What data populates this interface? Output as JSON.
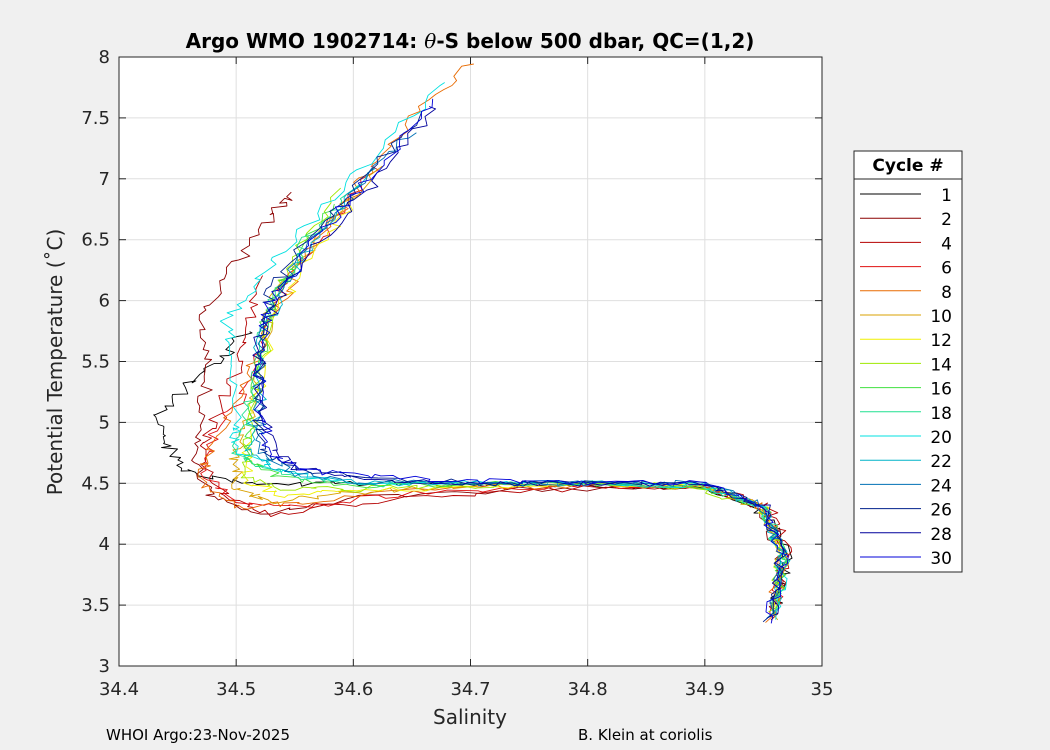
{
  "chart_data": {
    "type": "line",
    "title_prefix": "Argo WMO 1902714: ",
    "title_theta": "θ",
    "title_suffix": "-S below 500 dbar,  QC=(1,2)",
    "xlabel": "Salinity",
    "ylabel": "Potential Temperature (˚C)",
    "xlim": [
      34.4,
      35.0
    ],
    "ylim": [
      3.0,
      8.0
    ],
    "xticks": [
      "34.4",
      "34.5",
      "34.6",
      "34.7",
      "34.8",
      "34.9",
      "35"
    ],
    "yticks": [
      "3",
      "3.5",
      "4",
      "4.5",
      "5",
      "5.5",
      "6",
      "6.5",
      "7",
      "7.5",
      "8"
    ],
    "grid": true,
    "legend": {
      "title": "Cycle #",
      "placement": "right",
      "entries": [
        {
          "label": "1",
          "color": "#000000"
        },
        {
          "label": "2",
          "color": "#8c0000"
        },
        {
          "label": "4",
          "color": "#b40000"
        },
        {
          "label": "6",
          "color": "#e01010"
        },
        {
          "label": "8",
          "color": "#e86a00"
        },
        {
          "label": "10",
          "color": "#d8a000"
        },
        {
          "label": "12",
          "color": "#f0f000"
        },
        {
          "label": "14",
          "color": "#9ee800"
        },
        {
          "label": "16",
          "color": "#40e040"
        },
        {
          "label": "18",
          "color": "#20e090"
        },
        {
          "label": "20",
          "color": "#00e0e0"
        },
        {
          "label": "22",
          "color": "#00b4c8"
        },
        {
          "label": "24",
          "color": "#0070b4"
        },
        {
          "label": "26",
          "color": "#00208c"
        },
        {
          "label": "28",
          "color": "#00009c"
        },
        {
          "label": "30",
          "color": "#0000d8"
        }
      ]
    },
    "base_profile": [
      [
        34.955,
        3.32
      ],
      [
        34.958,
        3.45
      ],
      [
        34.962,
        3.6
      ],
      [
        34.965,
        3.75
      ],
      [
        34.967,
        3.9
      ],
      [
        34.966,
        4.0
      ],
      [
        34.963,
        4.1
      ],
      [
        34.955,
        4.2
      ],
      [
        34.94,
        4.3
      ],
      [
        34.92,
        4.4
      ],
      [
        34.9,
        4.48
      ],
      [
        34.85,
        4.5
      ],
      [
        34.8,
        4.5
      ],
      [
        34.75,
        4.5
      ],
      [
        34.7,
        4.5
      ],
      [
        34.65,
        4.52
      ],
      [
        34.6,
        4.55
      ],
      [
        34.56,
        4.6
      ],
      [
        34.53,
        4.68
      ],
      [
        34.52,
        4.8
      ],
      [
        34.52,
        5.0
      ],
      [
        34.52,
        5.3
      ],
      [
        34.52,
        5.6
      ],
      [
        34.52,
        5.9
      ],
      [
        34.535,
        6.15
      ],
      [
        34.555,
        6.4
      ],
      [
        34.58,
        6.7
      ],
      [
        34.61,
        7.0
      ],
      [
        34.64,
        7.3
      ],
      [
        34.67,
        7.6
      ]
    ],
    "series": [
      {
        "name": "1",
        "color": "#000000",
        "profile": [
          [
            34.96,
            3.5
          ],
          [
            34.97,
            3.9
          ],
          [
            34.95,
            4.25
          ],
          [
            34.9,
            4.47
          ],
          [
            34.8,
            4.48
          ],
          [
            34.7,
            4.5
          ],
          [
            34.6,
            4.5
          ],
          [
            34.5,
            4.5
          ],
          [
            34.46,
            4.6
          ],
          [
            34.44,
            4.8
          ],
          [
            34.43,
            5.05
          ],
          [
            34.46,
            5.3
          ],
          [
            34.49,
            5.55
          ],
          [
            34.51,
            5.75
          ]
        ]
      },
      {
        "name": "2",
        "color": "#8c0000",
        "profile": [
          [
            34.96,
            3.4
          ],
          [
            34.965,
            3.9
          ],
          [
            34.95,
            4.28
          ],
          [
            34.9,
            4.46
          ],
          [
            34.75,
            4.45
          ],
          [
            34.62,
            4.4
          ],
          [
            34.52,
            4.25
          ],
          [
            34.48,
            4.4
          ],
          [
            34.46,
            4.7
          ],
          [
            34.47,
            5.1
          ],
          [
            34.48,
            5.5
          ],
          [
            34.47,
            5.9
          ],
          [
            34.5,
            6.3
          ],
          [
            34.53,
            6.7
          ],
          [
            34.55,
            6.87
          ]
        ]
      },
      {
        "name": "4",
        "color": "#b40000",
        "profile": [
          [
            34.96,
            3.5
          ],
          [
            34.97,
            3.95
          ],
          [
            34.955,
            4.3
          ],
          [
            34.9,
            4.47
          ],
          [
            34.75,
            4.45
          ],
          [
            34.62,
            4.35
          ],
          [
            34.53,
            4.25
          ],
          [
            34.49,
            4.4
          ],
          [
            34.47,
            4.7
          ],
          [
            34.48,
            5.0
          ],
          [
            34.5,
            5.4
          ],
          [
            34.51,
            5.8
          ],
          [
            34.52,
            6.2
          ]
        ]
      },
      {
        "name": "6",
        "color": "#e01010",
        "profile": [
          [
            34.958,
            3.4
          ],
          [
            34.968,
            3.95
          ],
          [
            34.95,
            4.3
          ],
          [
            34.9,
            4.47
          ],
          [
            34.78,
            4.47
          ],
          [
            34.65,
            4.42
          ],
          [
            34.55,
            4.3
          ],
          [
            34.5,
            4.35
          ],
          [
            34.47,
            4.6
          ],
          [
            34.48,
            4.9
          ],
          [
            34.51,
            5.3
          ],
          [
            34.52,
            5.7
          ],
          [
            34.54,
            6.1
          ],
          [
            34.58,
            6.6
          ],
          [
            34.62,
            7.1
          ]
        ]
      },
      {
        "name": "8",
        "color": "#e86a00",
        "profile": [
          [
            34.955,
            3.35
          ],
          [
            34.966,
            3.9
          ],
          [
            34.95,
            4.3
          ],
          [
            34.9,
            4.47
          ],
          [
            34.78,
            4.48
          ],
          [
            34.66,
            4.45
          ],
          [
            34.56,
            4.35
          ],
          [
            34.5,
            4.3
          ],
          [
            34.47,
            4.5
          ],
          [
            34.48,
            4.8
          ],
          [
            34.5,
            5.2
          ],
          [
            34.52,
            5.6
          ],
          [
            34.54,
            6.0
          ],
          [
            34.57,
            6.5
          ],
          [
            34.61,
            7.0
          ],
          [
            34.65,
            7.5
          ],
          [
            34.7,
            7.95
          ]
        ]
      },
      {
        "name": "10",
        "color": "#d8a000",
        "profile": [
          [
            34.96,
            3.4
          ],
          [
            34.967,
            3.9
          ],
          [
            34.95,
            4.28
          ],
          [
            34.9,
            4.47
          ],
          [
            34.8,
            4.5
          ],
          [
            34.7,
            4.48
          ],
          [
            34.6,
            4.42
          ],
          [
            34.53,
            4.35
          ],
          [
            34.5,
            4.45
          ],
          [
            34.5,
            4.7
          ],
          [
            34.51,
            5.0
          ],
          [
            34.52,
            5.5
          ],
          [
            34.53,
            6.0
          ],
          [
            34.57,
            6.5
          ],
          [
            34.62,
            7.1
          ]
        ]
      },
      {
        "name": "12",
        "color": "#f0f000",
        "profile": [
          [
            34.96,
            3.5
          ],
          [
            34.966,
            3.9
          ],
          [
            34.95,
            4.3
          ],
          [
            34.9,
            4.48
          ],
          [
            34.8,
            4.5
          ],
          [
            34.7,
            4.47
          ],
          [
            34.6,
            4.43
          ],
          [
            34.54,
            4.4
          ],
          [
            34.51,
            4.5
          ],
          [
            34.51,
            4.8
          ],
          [
            34.52,
            5.3
          ],
          [
            34.53,
            5.8
          ],
          [
            34.56,
            6.3
          ],
          [
            34.6,
            6.8
          ]
        ]
      },
      {
        "name": "14",
        "color": "#9ee800",
        "profile": [
          [
            34.958,
            3.45
          ],
          [
            34.966,
            3.9
          ],
          [
            34.95,
            4.3
          ],
          [
            34.9,
            4.45
          ],
          [
            34.8,
            4.5
          ],
          [
            34.7,
            4.48
          ],
          [
            34.6,
            4.45
          ],
          [
            34.54,
            4.45
          ],
          [
            34.51,
            4.55
          ],
          [
            34.51,
            4.9
          ],
          [
            34.52,
            5.4
          ],
          [
            34.53,
            5.9
          ],
          [
            34.55,
            6.4
          ],
          [
            34.59,
            6.9
          ]
        ]
      },
      {
        "name": "16",
        "color": "#40e040",
        "profile": [
          [
            34.96,
            3.4
          ],
          [
            34.967,
            3.9
          ],
          [
            34.95,
            4.3
          ],
          [
            34.9,
            4.47
          ],
          [
            34.8,
            4.5
          ],
          [
            34.7,
            4.5
          ],
          [
            34.6,
            4.47
          ],
          [
            34.54,
            4.55
          ],
          [
            34.51,
            4.7
          ],
          [
            34.51,
            5.0
          ],
          [
            34.52,
            5.5
          ],
          [
            34.53,
            6.0
          ],
          [
            34.55,
            6.3
          ],
          [
            34.58,
            6.8
          ]
        ]
      },
      {
        "name": "18",
        "color": "#20e090",
        "profile": [
          [
            34.958,
            3.45
          ],
          [
            34.966,
            3.9
          ],
          [
            34.95,
            4.3
          ],
          [
            34.9,
            4.48
          ],
          [
            34.8,
            4.5
          ],
          [
            34.7,
            4.5
          ],
          [
            34.6,
            4.48
          ],
          [
            34.53,
            4.6
          ],
          [
            34.5,
            4.75
          ],
          [
            34.51,
            5.1
          ],
          [
            34.52,
            5.6
          ],
          [
            34.53,
            6.0
          ],
          [
            34.56,
            6.5
          ],
          [
            34.6,
            6.95
          ]
        ]
      },
      {
        "name": "20",
        "color": "#00e0e0",
        "profile": [
          [
            34.96,
            3.4
          ],
          [
            34.967,
            3.9
          ],
          [
            34.95,
            4.3
          ],
          [
            34.9,
            4.48
          ],
          [
            34.8,
            4.5
          ],
          [
            34.7,
            4.5
          ],
          [
            34.6,
            4.48
          ],
          [
            34.53,
            4.62
          ],
          [
            34.5,
            4.8
          ],
          [
            34.5,
            5.0
          ],
          [
            34.5,
            5.5
          ],
          [
            34.49,
            5.85
          ],
          [
            34.52,
            6.2
          ],
          [
            34.56,
            6.6
          ],
          [
            34.62,
            7.2
          ],
          [
            34.68,
            7.8
          ]
        ]
      },
      {
        "name": "22",
        "color": "#00b4c8",
        "profile": [
          [
            34.958,
            3.4
          ],
          [
            34.968,
            3.9
          ],
          [
            34.95,
            4.3
          ],
          [
            34.9,
            4.48
          ],
          [
            34.8,
            4.5
          ],
          [
            34.7,
            4.5
          ],
          [
            34.6,
            4.5
          ],
          [
            34.54,
            4.6
          ],
          [
            34.51,
            4.8
          ],
          [
            34.52,
            5.2
          ],
          [
            34.52,
            5.7
          ],
          [
            34.54,
            6.1
          ],
          [
            34.57,
            6.55
          ],
          [
            34.62,
            7.1
          ]
        ]
      },
      {
        "name": "24",
        "color": "#0070b4",
        "profile": [
          [
            34.96,
            3.45
          ],
          [
            34.966,
            3.9
          ],
          [
            34.95,
            4.3
          ],
          [
            34.9,
            4.5
          ],
          [
            34.8,
            4.5
          ],
          [
            34.7,
            4.5
          ],
          [
            34.6,
            4.52
          ],
          [
            34.55,
            4.58
          ],
          [
            34.52,
            4.75
          ],
          [
            34.52,
            5.1
          ],
          [
            34.52,
            5.6
          ],
          [
            34.53,
            6.0
          ],
          [
            34.56,
            6.45
          ],
          [
            34.6,
            6.9
          ],
          [
            34.65,
            7.4
          ]
        ]
      },
      {
        "name": "26",
        "color": "#00208c",
        "profile": [
          [
            34.955,
            3.35
          ],
          [
            34.966,
            3.9
          ],
          [
            34.95,
            4.3
          ],
          [
            34.9,
            4.5
          ],
          [
            34.8,
            4.5
          ],
          [
            34.7,
            4.5
          ],
          [
            34.6,
            4.55
          ],
          [
            34.55,
            4.62
          ],
          [
            34.52,
            4.8
          ],
          [
            34.52,
            5.2
          ],
          [
            34.52,
            5.7
          ],
          [
            34.53,
            6.1
          ],
          [
            34.56,
            6.5
          ],
          [
            34.61,
            7.0
          ],
          [
            34.66,
            7.55
          ]
        ]
      },
      {
        "name": "28",
        "color": "#00009c",
        "profile": [
          [
            34.958,
            3.4
          ],
          [
            34.967,
            3.9
          ],
          [
            34.95,
            4.3
          ],
          [
            34.9,
            4.5
          ],
          [
            34.8,
            4.5
          ],
          [
            34.7,
            4.5
          ],
          [
            34.6,
            4.55
          ],
          [
            34.55,
            4.62
          ],
          [
            34.53,
            4.8
          ],
          [
            34.52,
            5.2
          ],
          [
            34.52,
            5.7
          ],
          [
            34.54,
            6.1
          ],
          [
            34.58,
            6.6
          ],
          [
            34.63,
            7.1
          ],
          [
            34.67,
            7.6
          ]
        ]
      },
      {
        "name": "30",
        "color": "#0000d8",
        "profile": [
          [
            34.955,
            3.35
          ],
          [
            34.966,
            3.9
          ],
          [
            34.95,
            4.3
          ],
          [
            34.9,
            4.52
          ],
          [
            34.8,
            4.5
          ],
          [
            34.7,
            4.52
          ],
          [
            34.62,
            4.55
          ],
          [
            34.56,
            4.6
          ],
          [
            34.53,
            4.75
          ],
          [
            34.52,
            5.1
          ],
          [
            34.52,
            5.6
          ],
          [
            34.53,
            6.0
          ],
          [
            34.57,
            6.55
          ],
          [
            34.62,
            7.05
          ],
          [
            34.67,
            7.65
          ]
        ]
      }
    ]
  },
  "footer": {
    "left": "WHOI Argo:23-Nov-2025",
    "right": "B. Klein at coriolis"
  }
}
